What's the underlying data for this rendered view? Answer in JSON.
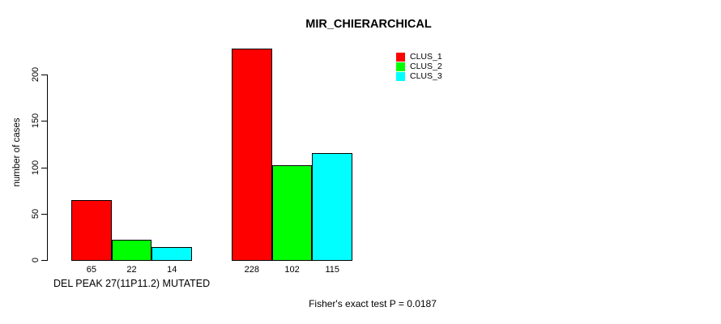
{
  "title": "MIR_CHIERARCHICAL",
  "ylabel": "number of cases",
  "footer": "Fisher's exact test P = 0.0187",
  "legend": [
    {
      "label": "CLUS_1",
      "color": "#ff0000"
    },
    {
      "label": "CLUS_2",
      "color": "#00ff00"
    },
    {
      "label": "CLUS_3",
      "color": "#00ffff"
    }
  ],
  "chart_data": {
    "type": "bar",
    "title": "MIR_CHIERARCHICAL",
    "xlabel": "",
    "ylabel": "number of cases",
    "categories": [
      "DEL PEAK 27(11P11.2) MUTATED",
      ""
    ],
    "series": [
      {
        "name": "CLUS_1",
        "color": "#ff0000",
        "values": [
          65,
          228
        ]
      },
      {
        "name": "CLUS_2",
        "color": "#00ff00",
        "values": [
          22,
          102
        ]
      },
      {
        "name": "CLUS_3",
        "color": "#00ffff",
        "values": [
          14,
          115
        ]
      }
    ],
    "bar_value_labels": [
      [
        65,
        22,
        14
      ],
      [
        228,
        102,
        115
      ]
    ],
    "yticks": [
      0,
      50,
      100,
      150,
      200
    ],
    "ylim": [
      0,
      230
    ],
    "grid": false,
    "legend_position": "top-right",
    "annotation": "Fisher's exact test P = 0.0187"
  }
}
